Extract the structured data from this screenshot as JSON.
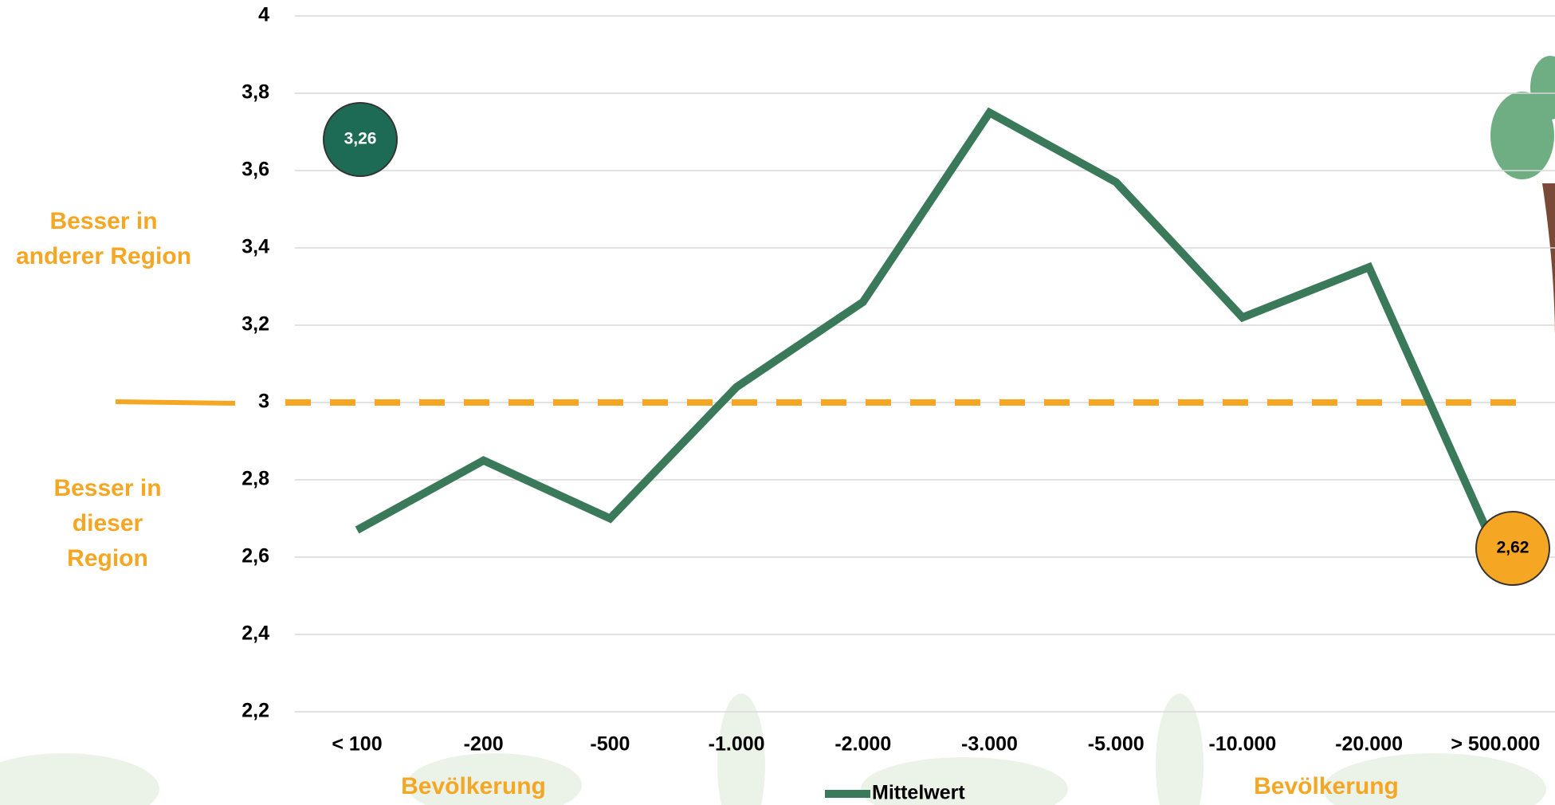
{
  "chart_data": {
    "type": "line",
    "categories": [
      "< 100",
      "-200",
      "-500",
      "-1.000",
      "-2.000",
      "-3.000",
      "-5.000",
      "-10.000",
      "-20.000",
      "> 500.000"
    ],
    "series": [
      {
        "name": "Mittelwert",
        "color": "#3a7a5a",
        "values": [
          2.67,
          2.85,
          2.7,
          3.04,
          3.26,
          3.75,
          3.57,
          3.22,
          3.35,
          2.62
        ]
      }
    ],
    "ylim": [
      2.2,
      4
    ],
    "yticks": [
      {
        "value": 2.2,
        "label": "2,2"
      },
      {
        "value": 2.4,
        "label": "2,4"
      },
      {
        "value": 2.6,
        "label": "2,6"
      },
      {
        "value": 2.8,
        "label": "2,8"
      },
      3,
      {
        "value": 3.2,
        "label": "3,2"
      },
      {
        "value": 3.4,
        "label": "3,4"
      },
      {
        "value": 3.6,
        "label": "3,6"
      },
      {
        "value": 3.8,
        "label": "3,8"
      },
      4
    ],
    "grid": true,
    "reference_line": {
      "value": 3,
      "color": "#f5a623"
    },
    "region_labels": {
      "above": "Besser in anderer Region",
      "below": "Besser in dieser Region"
    },
    "x_label_left": "Bevölkerung",
    "x_label_right": "Bevölkerung",
    "annotations": [
      {
        "text": "3,26",
        "color": "#1e6b55"
      },
      {
        "text": "2,62",
        "color": "#f5a623"
      }
    ]
  }
}
